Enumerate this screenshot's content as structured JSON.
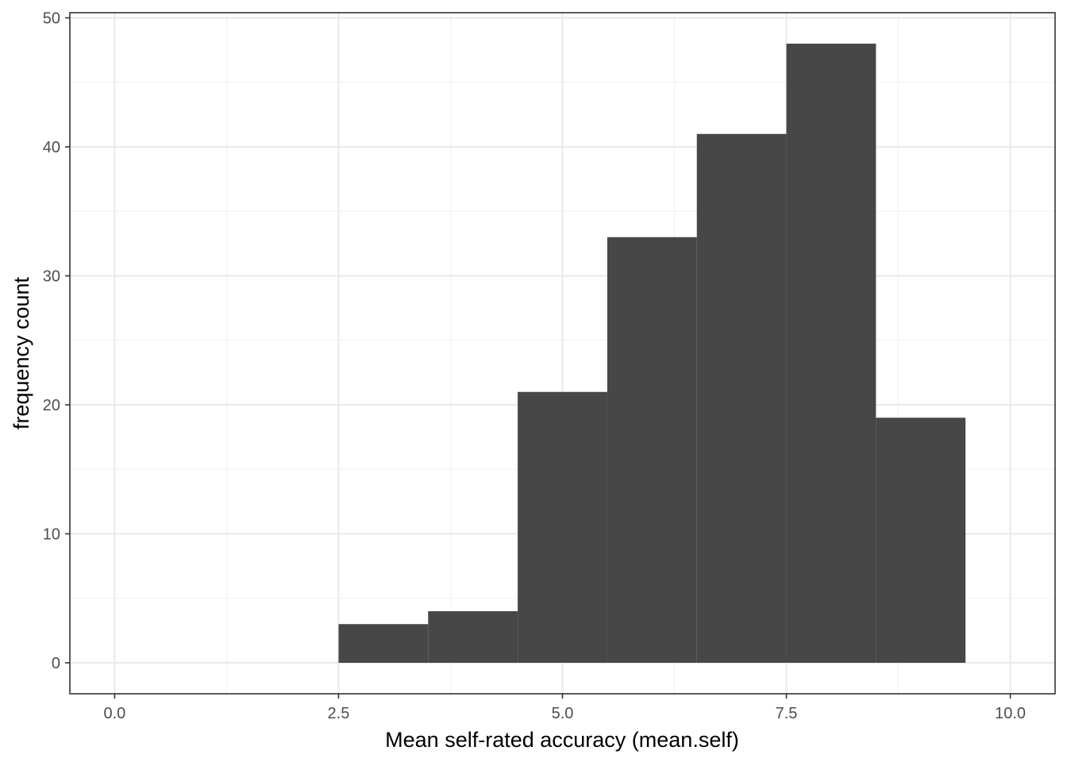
{
  "chart_data": {
    "type": "bar",
    "title": "",
    "xlabel": "Mean self-rated accuracy (mean.self)",
    "ylabel": "frequency count",
    "xlim": [
      -0.5,
      10.5
    ],
    "ylim": [
      -2.4,
      50.4
    ],
    "x_ticks": [
      0,
      2.5,
      5,
      7.5,
      10
    ],
    "x_tick_labels": [
      "0.0",
      "2.5",
      "5.0",
      "7.5",
      "10.0"
    ],
    "y_ticks": [
      0,
      10,
      20,
      30,
      40,
      50
    ],
    "y_tick_labels": [
      "0",
      "10",
      "20",
      "30",
      "40",
      "50"
    ],
    "bin_width": 1,
    "bins": [
      {
        "x_start": 2.5,
        "x_end": 3.5,
        "count": 3
      },
      {
        "x_start": 3.5,
        "x_end": 4.5,
        "count": 4
      },
      {
        "x_start": 4.5,
        "x_end": 5.5,
        "count": 21
      },
      {
        "x_start": 5.5,
        "x_end": 6.5,
        "count": 33
      },
      {
        "x_start": 6.5,
        "x_end": 7.5,
        "count": 41
      },
      {
        "x_start": 7.5,
        "x_end": 8.5,
        "count": 48
      },
      {
        "x_start": 8.5,
        "x_end": 9.5,
        "count": 19
      }
    ],
    "grid": true,
    "legend": "none",
    "colors": {
      "bar_fill": "#474747",
      "panel_border": "#333333",
      "grid_major": "#ebebeb",
      "grid_minor": "#f2f2f2",
      "tick_text": "#4d4d4d",
      "title_text": "#000000",
      "background": "#ffffff"
    }
  }
}
